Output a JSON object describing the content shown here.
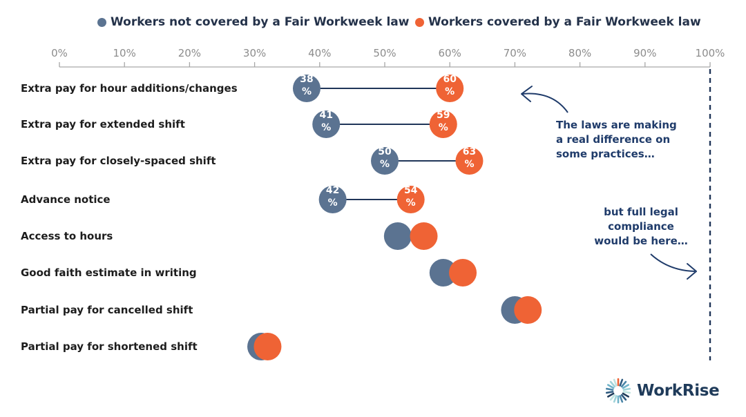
{
  "legend": {
    "not_covered": "Workers not covered by a Fair Workweek law",
    "covered": "Workers covered by a Fair Workweek law"
  },
  "colors": {
    "not_covered": "#5b7391",
    "covered": "#ef6335",
    "connector": "#1f3558",
    "axis": "#a6a6a6",
    "tick_text": "#8c8c8c",
    "category_text": "#1d1d1d",
    "annotation": "#1f3b6a"
  },
  "chart_data": {
    "type": "dumbbell",
    "x_ticks": [
      "0%",
      "10%",
      "20%",
      "30%",
      "40%",
      "50%",
      "60%",
      "70%",
      "80%",
      "90%",
      "100%"
    ],
    "xlim": [
      0,
      100
    ],
    "reference_line": 100,
    "categories": [
      "Extra pay for hour additions/changes",
      "Extra pay for extended shift",
      "Extra pay for closely-spaced shift",
      "Advance notice",
      "Access to hours",
      "Good faith estimate in writing",
      "Partial pay for cancelled shift",
      "Partial pay for shortened shift"
    ],
    "series": [
      {
        "name": "Workers not covered by a Fair Workweek law",
        "values": [
          38,
          41,
          50,
          42,
          52,
          59,
          70,
          31
        ],
        "labels": [
          "38\n%",
          "41\n%",
          "50\n%",
          "42\n%",
          "",
          "",
          "",
          ""
        ]
      },
      {
        "name": "Workers covered by a Fair Workweek law",
        "values": [
          60,
          59,
          63,
          54,
          56,
          62,
          72,
          32
        ],
        "labels": [
          "60\n%",
          "59\n%",
          "63\n%",
          "54\n%",
          "",
          "",
          "",
          ""
        ]
      }
    ],
    "annotations": [
      "The laws are making\na real difference on\nsome practices…",
      "but full legal\ncompliance\nwould be here…"
    ]
  },
  "logo": {
    "text": "WorkRise"
  }
}
